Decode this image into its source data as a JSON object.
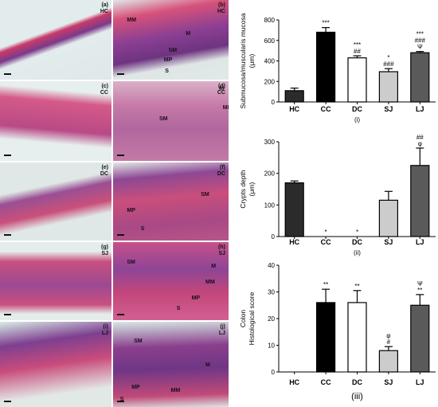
{
  "micrographs": [
    {
      "letter": "(a)",
      "group": "HC",
      "labels": []
    },
    {
      "letter": "(b)",
      "group": "HC",
      "labels": [
        "MM",
        "M",
        "SM",
        "MP",
        "S"
      ]
    },
    {
      "letter": "(c)",
      "group": "CC",
      "labels": []
    },
    {
      "letter": "(d)",
      "group": "CC",
      "labels": [
        "M",
        "MM",
        "SM"
      ]
    },
    {
      "letter": "(e)",
      "group": "DC",
      "labels": []
    },
    {
      "letter": "(f)",
      "group": "DC",
      "labels": [
        "SM",
        "MP",
        "S"
      ]
    },
    {
      "letter": "(g)",
      "group": "SJ",
      "labels": []
    },
    {
      "letter": "(h)",
      "group": "SJ",
      "labels": [
        "SM",
        "M",
        "MM",
        "MP",
        "S"
      ]
    },
    {
      "letter": "(i)",
      "group": "LJ",
      "labels": []
    },
    {
      "letter": "(j)",
      "group": "LJ",
      "labels": [
        "SM",
        "M",
        "MP",
        "MM",
        "S"
      ]
    }
  ],
  "chart_data": [
    {
      "type": "bar",
      "panel_label": "(i)",
      "ylabel_lines": [
        "Submucosa/muscularis mucosa",
        "(μm)"
      ],
      "categories": [
        "HC",
        "CC",
        "DC",
        "SJ",
        "LJ"
      ],
      "values": [
        110,
        680,
        430,
        295,
        480
      ],
      "errors": [
        25,
        45,
        20,
        30,
        12
      ],
      "ylim": [
        0,
        800
      ],
      "yticks": [
        "0",
        "200",
        "400",
        "600",
        "800"
      ],
      "annotations": [
        [],
        [
          "***"
        ],
        [
          "***",
          "##"
        ],
        [
          "*",
          "###"
        ],
        [
          "***",
          "###",
          "Ψ"
        ]
      ],
      "colors": [
        "#2b2b2b",
        "#000000",
        "#ffffff",
        "#cccccc",
        "#5a5a5a"
      ]
    },
    {
      "type": "bar",
      "panel_label": "(ii)",
      "ylabel_lines": [
        "Crypts depth",
        "(μm)"
      ],
      "categories": [
        "HC",
        "CC",
        "DC",
        "SJ",
        "LJ"
      ],
      "values": [
        170,
        0,
        0,
        115,
        225
      ],
      "errors": [
        6,
        0,
        0,
        28,
        55
      ],
      "ylim": [
        0,
        300
      ],
      "yticks": [
        "0",
        "100",
        "200",
        "300"
      ],
      "annotations": [
        [],
        [
          "*"
        ],
        [
          "*"
        ],
        [],
        [
          "##",
          "φ"
        ]
      ],
      "colors": [
        "#2b2b2b",
        "#000000",
        "#ffffff",
        "#cccccc",
        "#5a5a5a"
      ]
    },
    {
      "type": "bar",
      "panel_label": "(iii)",
      "ylabel_lines": [
        "Colon",
        "Histological score"
      ],
      "categories": [
        "HC",
        "CC",
        "DC",
        "SJ",
        "LJ"
      ],
      "values": [
        0,
        26,
        26,
        8,
        25
      ],
      "errors": [
        0,
        5,
        4.5,
        1.5,
        4
      ],
      "ylim": [
        0,
        40
      ],
      "yticks": [
        "0",
        "10",
        "20",
        "30",
        "40"
      ],
      "annotations": [
        [],
        [
          "**"
        ],
        [
          "**"
        ],
        [
          "φ",
          "#"
        ],
        [
          "Ψ",
          "**"
        ]
      ],
      "colors": [
        "#2b2b2b",
        "#000000",
        "#ffffff",
        "#cccccc",
        "#5a5a5a"
      ]
    }
  ]
}
